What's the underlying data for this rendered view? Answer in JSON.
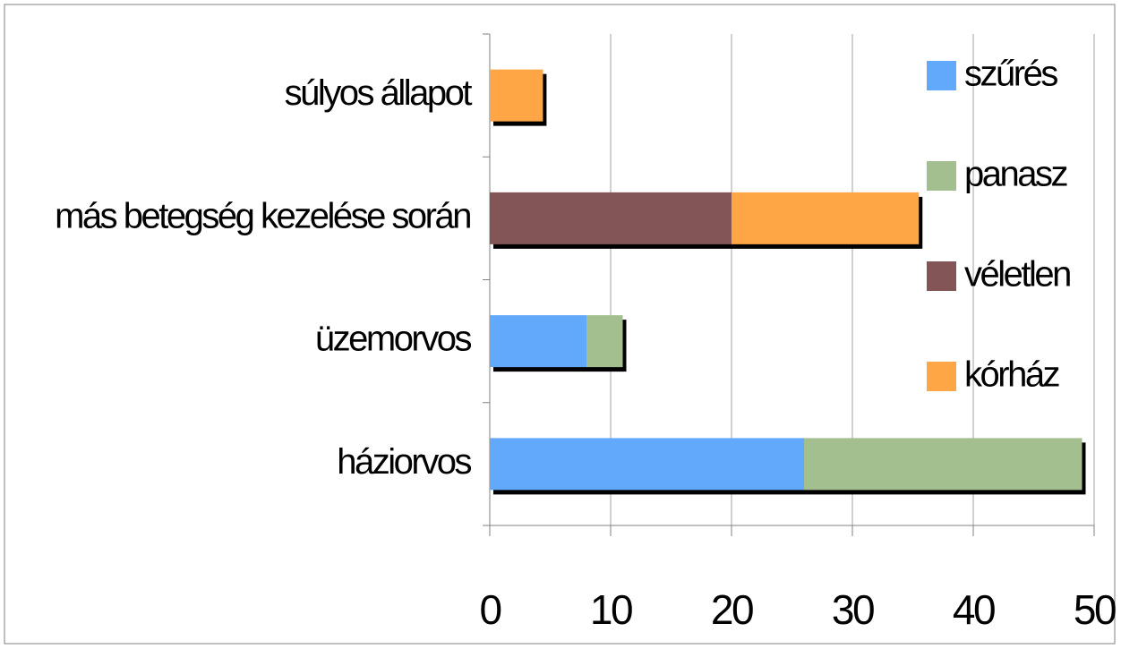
{
  "chart_data": {
    "type": "stacked_barh",
    "categories": [
      "háziorvos",
      "üzemorvos",
      "más betegség kezelése során",
      "súlyos állapot"
    ],
    "series": [
      {
        "name": "szűrés",
        "color": "#62a8fb",
        "values": [
          26,
          8,
          null,
          null
        ]
      },
      {
        "name": "panasz",
        "color": "#a3bf8f",
        "values": [
          23,
          3,
          null,
          null
        ]
      },
      {
        "name": "véletlen",
        "color": "#845556",
        "values": [
          null,
          null,
          20,
          null
        ]
      },
      {
        "name": "kórház",
        "color": "#fea545",
        "values": [
          null,
          null,
          15.5,
          4.4
        ]
      }
    ],
    "xlim": [
      0,
      50
    ],
    "xticks": [
      0,
      10,
      20,
      30,
      40,
      50
    ],
    "grid": true,
    "legend": "right"
  }
}
